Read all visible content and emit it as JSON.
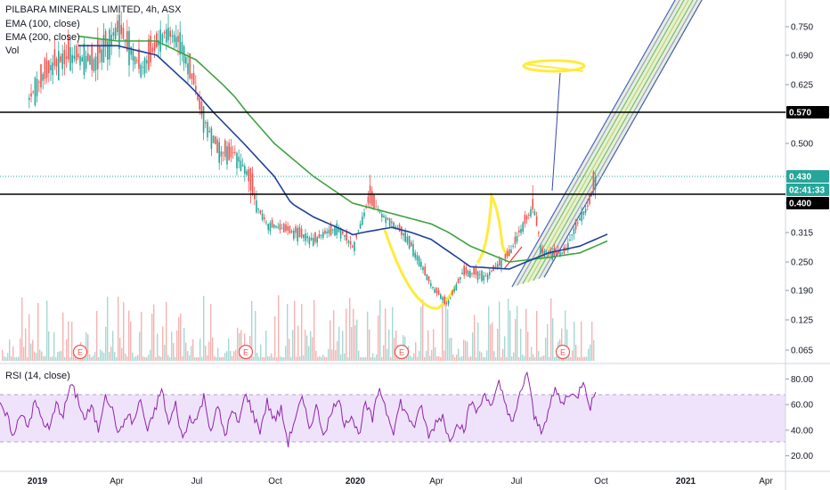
{
  "chart_data": [
    {
      "type": "candlestick",
      "title": "PILBARA MINERALS LIMITED, 4h, ASX",
      "legend": [
        {
          "label": "EMA (100, close)",
          "color": "#1f3f99"
        },
        {
          "label": "EMA (200, close)",
          "color": "#3fa23f"
        },
        {
          "label": "Vol",
          "color": "#26a69a"
        }
      ],
      "y_ticks": [
        "0.750",
        "0.690",
        "0.625",
        "0.570",
        "0.500",
        "0.430",
        "0.400",
        "0.315",
        "0.250",
        "0.190",
        "0.125",
        "0.065"
      ],
      "x_ticks": [
        "2019",
        "Apr",
        "Jul",
        "Oct",
        "2020",
        "Apr",
        "Jul",
        "Oct",
        "2021",
        "Apr"
      ],
      "ylim": [
        0.04,
        0.8
      ],
      "price_tags": [
        {
          "label": "0.570",
          "value": 0.57,
          "style": "black"
        },
        {
          "label": "0.430",
          "value": 0.43,
          "style": "teal"
        },
        {
          "label": "02:41:33",
          "value": 0.413,
          "style": "teal"
        },
        {
          "label": "0.400",
          "value": 0.4,
          "style": "black"
        }
      ],
      "horizontal_lines": [
        0.57,
        0.41
      ],
      "current_price_line": 0.43,
      "earnings_markers": [
        "E",
        "E",
        "E",
        "E"
      ],
      "price_path": [
        {
          "t": 0,
          "v": 0.7
        },
        {
          "t": 0.03,
          "v": 0.58
        },
        {
          "t": 0.06,
          "v": 0.66
        },
        {
          "t": 0.09,
          "v": 0.69
        },
        {
          "t": 0.12,
          "v": 0.68
        },
        {
          "t": 0.15,
          "v": 0.75
        },
        {
          "t": 0.18,
          "v": 0.66
        },
        {
          "t": 0.21,
          "v": 0.74
        },
        {
          "t": 0.23,
          "v": 0.72
        },
        {
          "t": 0.26,
          "v": 0.55
        },
        {
          "t": 0.28,
          "v": 0.48
        },
        {
          "t": 0.3,
          "v": 0.48
        },
        {
          "t": 0.32,
          "v": 0.42
        },
        {
          "t": 0.34,
          "v": 0.34
        },
        {
          "t": 0.37,
          "v": 0.32
        },
        {
          "t": 0.4,
          "v": 0.3
        },
        {
          "t": 0.43,
          "v": 0.33
        },
        {
          "t": 0.45,
          "v": 0.28
        },
        {
          "t": 0.47,
          "v": 0.41
        },
        {
          "t": 0.49,
          "v": 0.36
        },
        {
          "t": 0.52,
          "v": 0.3
        },
        {
          "t": 0.55,
          "v": 0.2
        },
        {
          "t": 0.57,
          "v": 0.16
        },
        {
          "t": 0.59,
          "v": 0.23
        },
        {
          "t": 0.62,
          "v": 0.22
        },
        {
          "t": 0.65,
          "v": 0.27
        },
        {
          "t": 0.68,
          "v": 0.39
        },
        {
          "t": 0.69,
          "v": 0.27
        },
        {
          "t": 0.72,
          "v": 0.27
        },
        {
          "t": 0.74,
          "v": 0.36
        },
        {
          "t": 0.76,
          "v": 0.43
        }
      ],
      "ema100_path": [
        {
          "t": 0.1,
          "v": 0.71
        },
        {
          "t": 0.15,
          "v": 0.71
        },
        {
          "t": 0.2,
          "v": 0.69
        },
        {
          "t": 0.25,
          "v": 0.61
        },
        {
          "t": 0.3,
          "v": 0.52
        },
        {
          "t": 0.35,
          "v": 0.43
        },
        {
          "t": 0.4,
          "v": 0.36
        },
        {
          "t": 0.45,
          "v": 0.31
        },
        {
          "t": 0.5,
          "v": 0.33
        },
        {
          "t": 0.55,
          "v": 0.3
        },
        {
          "t": 0.6,
          "v": 0.24
        },
        {
          "t": 0.65,
          "v": 0.235
        },
        {
          "t": 0.7,
          "v": 0.27
        },
        {
          "t": 0.74,
          "v": 0.285
        },
        {
          "t": 0.78,
          "v": 0.315
        }
      ],
      "ema200_path": [
        {
          "t": 0.1,
          "v": 0.73
        },
        {
          "t": 0.15,
          "v": 0.72
        },
        {
          "t": 0.2,
          "v": 0.72
        },
        {
          "t": 0.25,
          "v": 0.68
        },
        {
          "t": 0.3,
          "v": 0.6
        },
        {
          "t": 0.35,
          "v": 0.5
        },
        {
          "t": 0.4,
          "v": 0.43
        },
        {
          "t": 0.45,
          "v": 0.4
        },
        {
          "t": 0.5,
          "v": 0.37
        },
        {
          "t": 0.55,
          "v": 0.34
        },
        {
          "t": 0.6,
          "v": 0.285
        },
        {
          "t": 0.65,
          "v": 0.25
        },
        {
          "t": 0.7,
          "v": 0.26
        },
        {
          "t": 0.74,
          "v": 0.27
        },
        {
          "t": 0.78,
          "v": 0.3
        }
      ]
    },
    {
      "type": "line",
      "title": "RSI (14, close)",
      "y_ticks": [
        "80.00",
        "60.00",
        "40.00",
        "20.00"
      ],
      "band": [
        30,
        70
      ],
      "ylim": [
        10,
        90
      ],
      "color": "#8e24aa",
      "values": [
        58,
        50,
        35,
        55,
        44,
        62,
        48,
        40,
        60,
        52,
        75,
        66,
        48,
        58,
        40,
        70,
        55,
        36,
        52,
        46,
        64,
        38,
        55,
        72,
        44,
        60,
        32,
        50,
        48,
        66,
        40,
        58,
        36,
        54,
        46,
        70,
        52,
        40,
        62,
        48,
        56,
        30,
        50,
        64,
        42,
        58,
        38,
        50,
        66,
        46,
        52,
        36,
        60,
        48,
        74,
        55,
        40,
        62,
        50,
        44,
        58,
        34,
        46,
        52,
        30,
        48,
        40,
        62,
        54,
        70,
        58,
        76,
        60,
        44,
        68,
        86,
        50,
        40,
        54,
        72,
        60,
        70,
        64,
        80,
        58,
        74
      ]
    }
  ]
}
